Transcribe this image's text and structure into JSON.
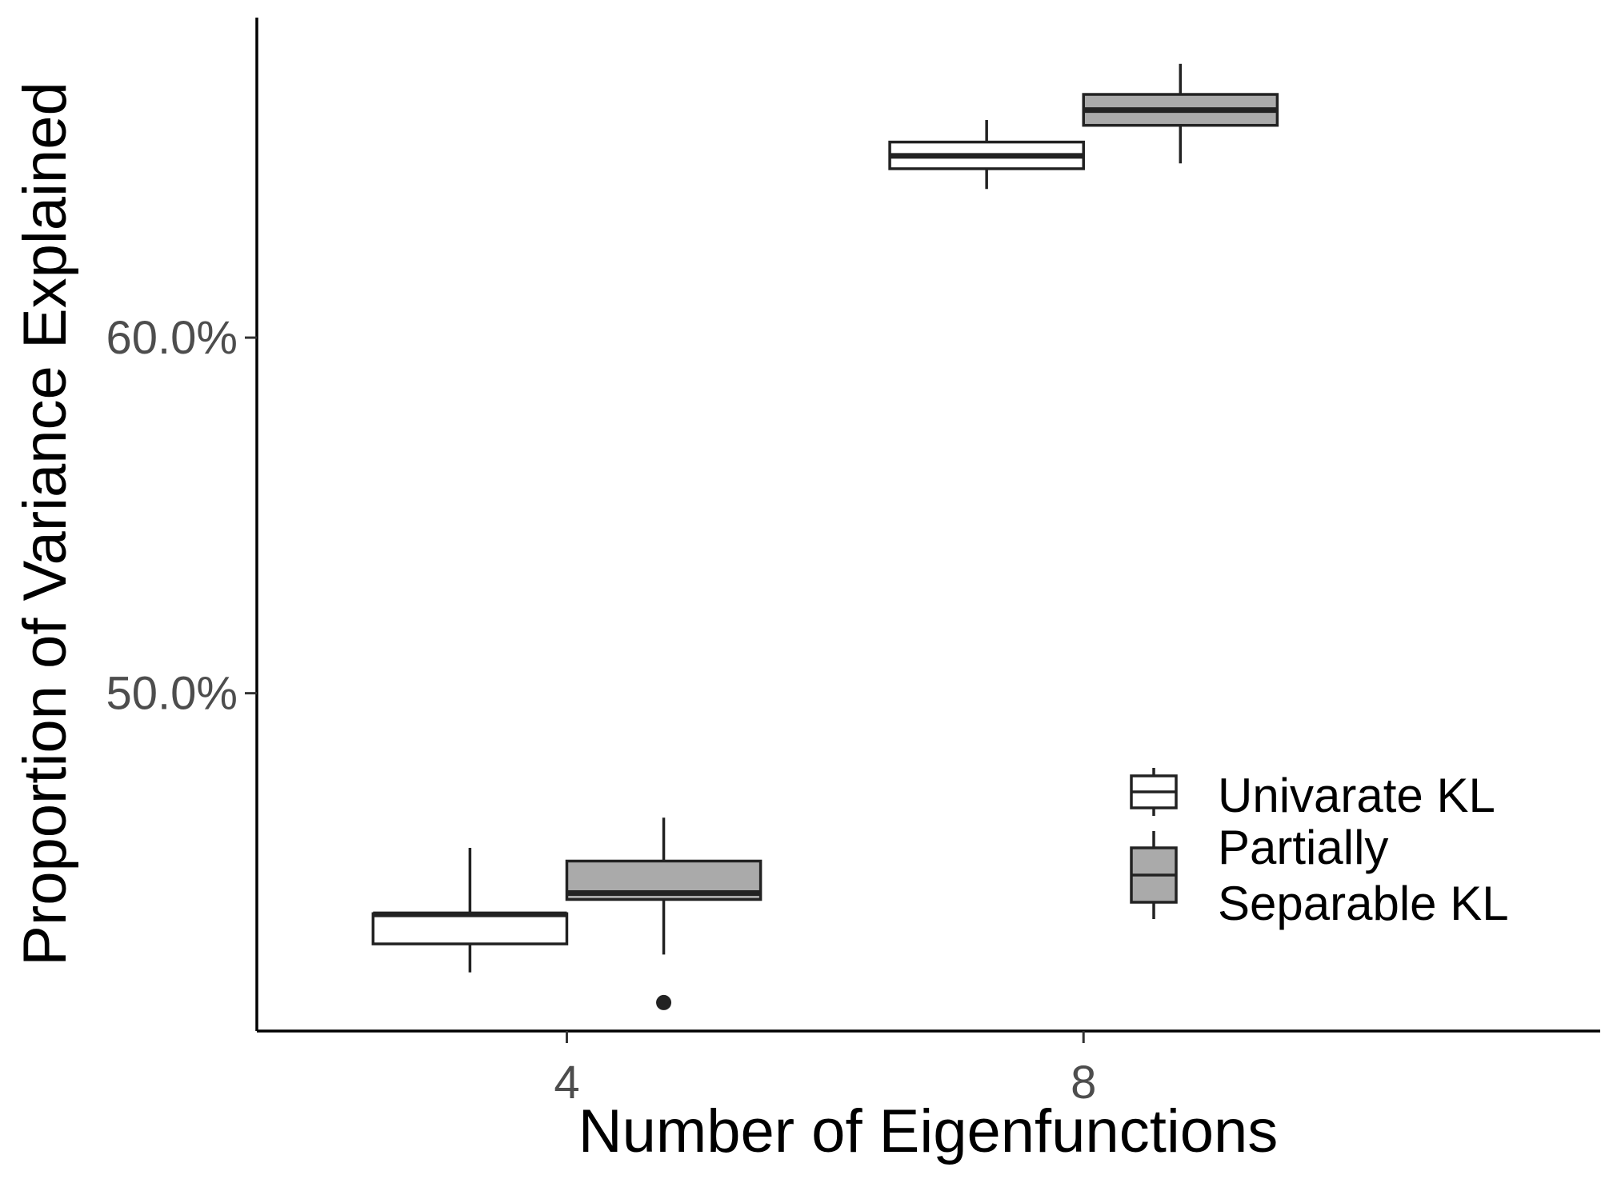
{
  "chart_data": {
    "type": "boxplot",
    "xlabel": "Number of Eigenfunctions",
    "ylabel": "Proportion of Variance Explained",
    "x_ticks": [
      "4",
      "8"
    ],
    "y_ticks": [
      {
        "value": 0.5,
        "label": "50.0%"
      },
      {
        "value": 0.6,
        "label": "60.0%"
      }
    ],
    "ylim": [
      0.405,
      0.69
    ],
    "grid": false,
    "legend": {
      "placement": "bottom-right",
      "entries": [
        {
          "series": 0,
          "lines": [
            "Univarate KL"
          ]
        },
        {
          "series": 1,
          "lines": [
            "Partially",
            "Separable KL"
          ]
        }
      ]
    },
    "series": [
      {
        "fill": "#ffffff",
        "boxes": [
          {
            "x": "4",
            "whisker_low": 0.4215,
            "q1": 0.4295,
            "median": 0.4378,
            "q3": 0.438,
            "whisker_high": 0.4565,
            "outliers": []
          },
          {
            "x": "8",
            "whisker_low": 0.6418,
            "q1": 0.6475,
            "median": 0.6511,
            "q3": 0.655,
            "whisker_high": 0.6612,
            "outliers": []
          }
        ]
      },
      {
        "fill": "#aaaaaa",
        "boxes": [
          {
            "x": "4",
            "whisker_low": 0.4265,
            "q1": 0.442,
            "median": 0.4438,
            "q3": 0.4528,
            "whisker_high": 0.465,
            "outliers": [
              0.413
            ]
          },
          {
            "x": "8",
            "whisker_low": 0.649,
            "q1": 0.6597,
            "median": 0.664,
            "q3": 0.6684,
            "whisker_high": 0.677,
            "outliers": []
          }
        ]
      }
    ]
  }
}
